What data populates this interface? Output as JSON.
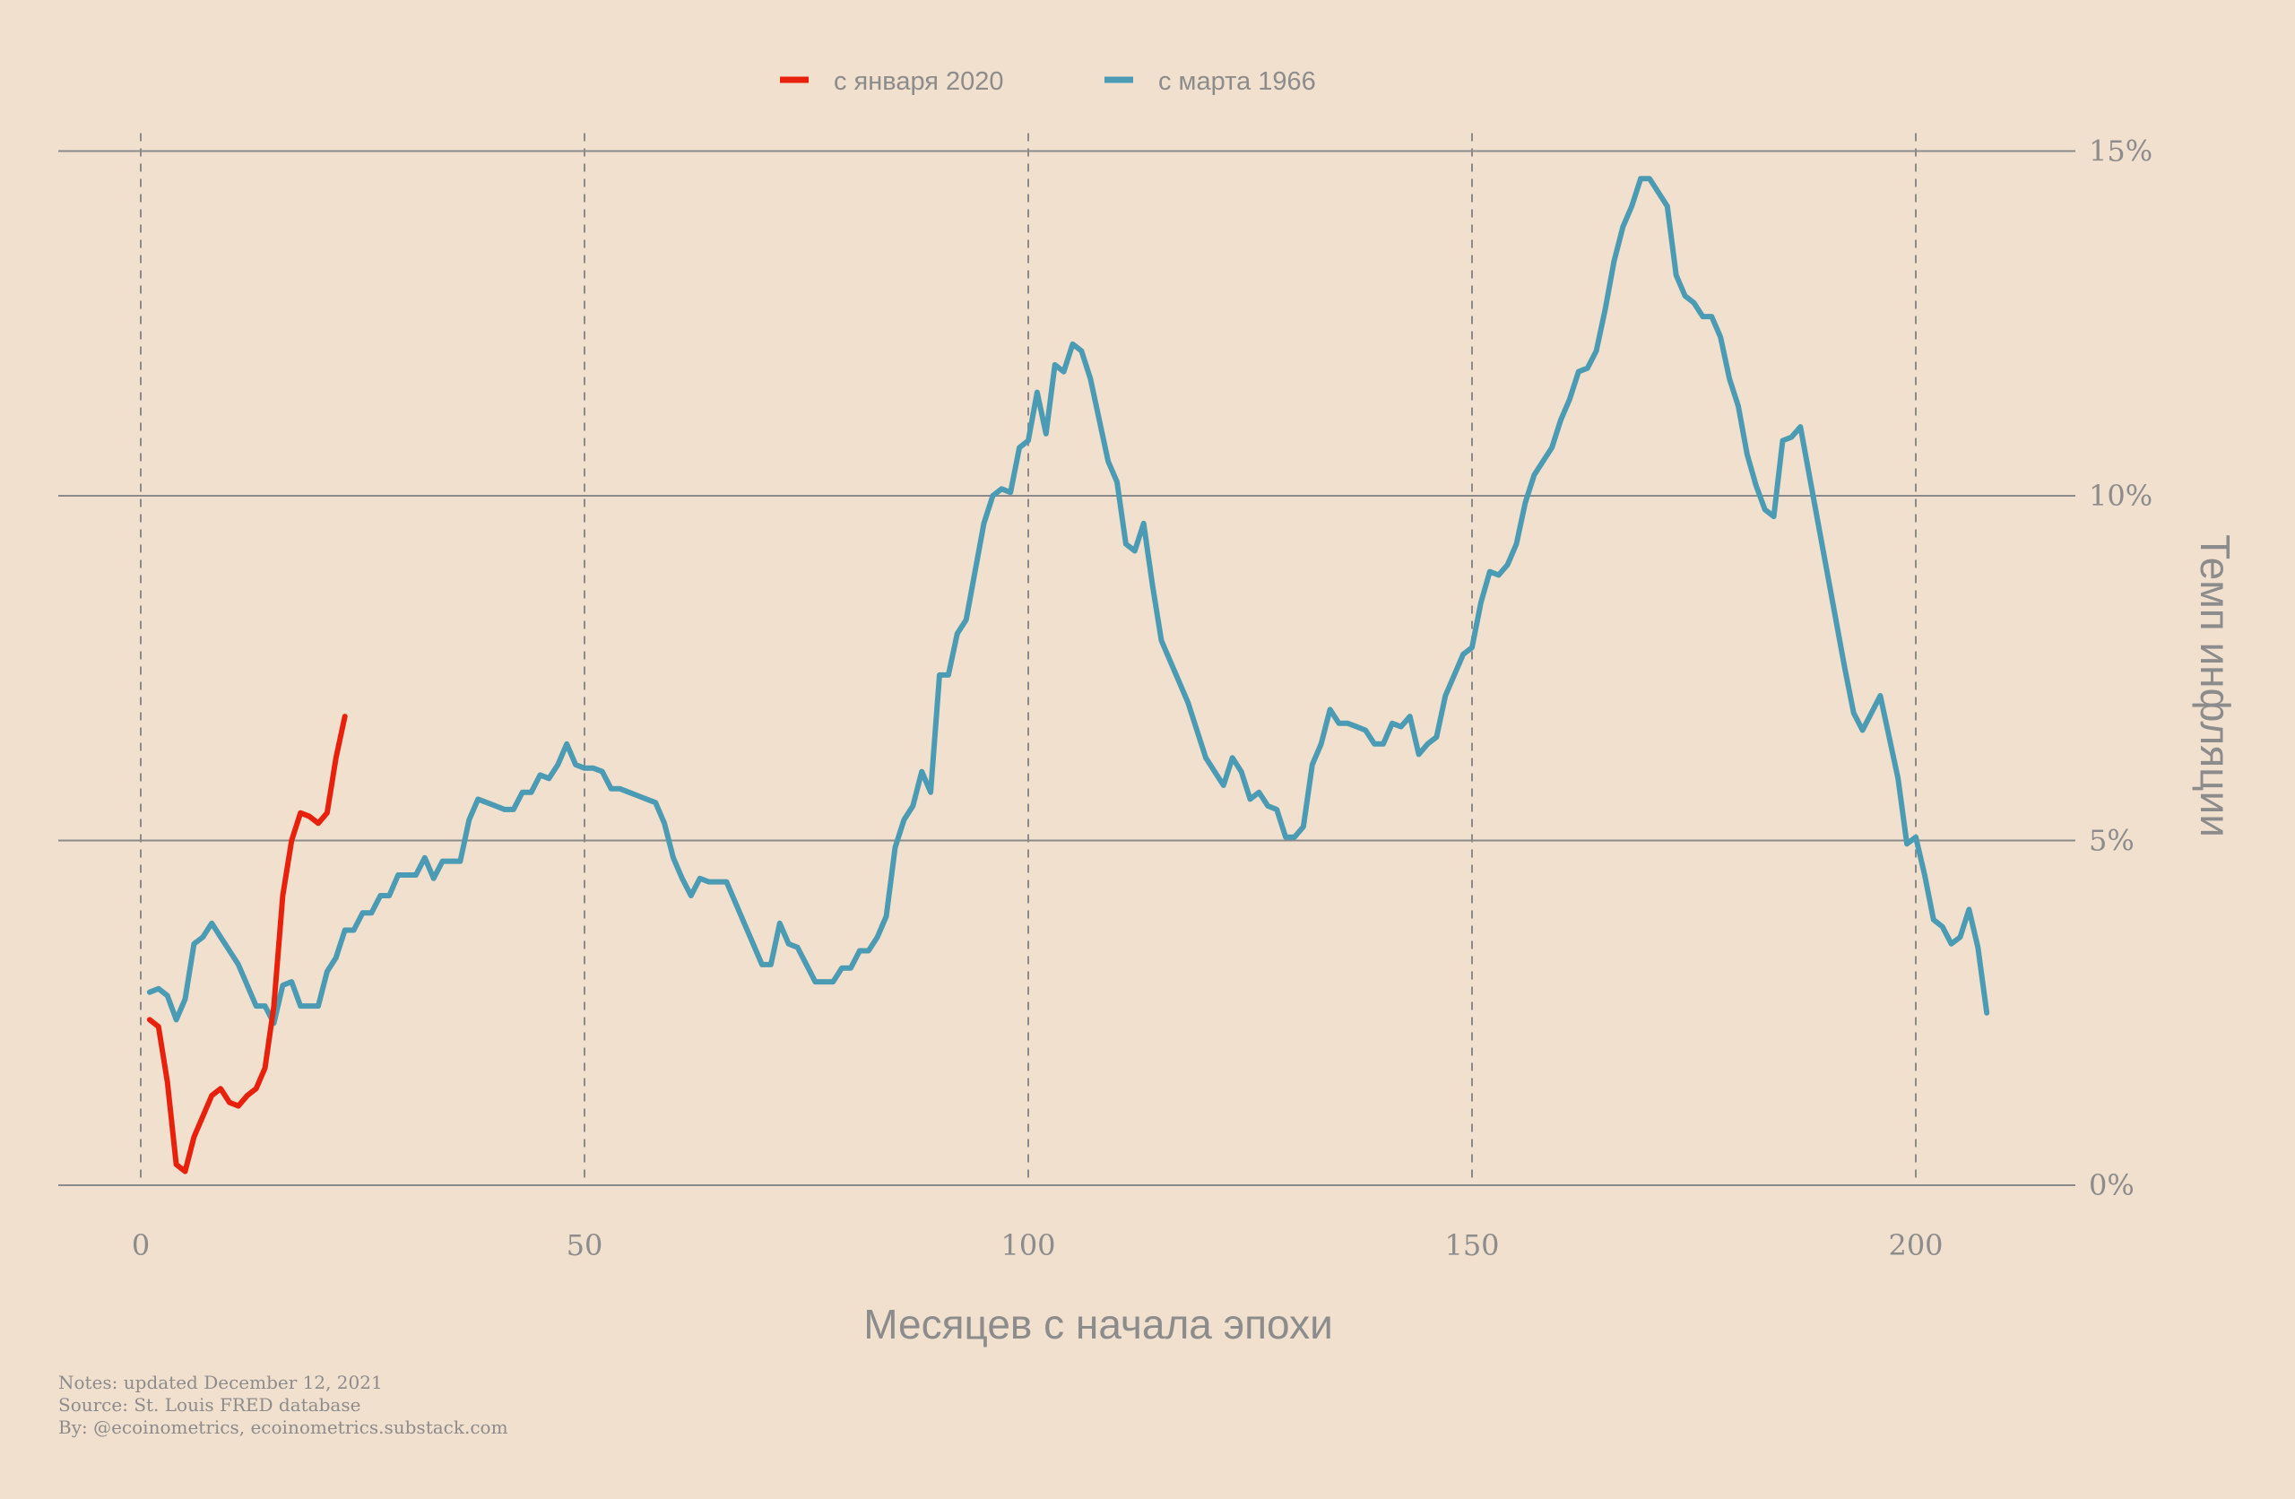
{
  "chart_data": {
    "type": "line",
    "xlabel": "Месяцев с начала эпохи",
    "ylabel": "Темп инфляции",
    "xlim": [
      -9,
      218
    ],
    "ylim": [
      0,
      15
    ],
    "x_ticks": [
      0,
      50,
      100,
      150,
      200
    ],
    "y_ticks": [
      0,
      5,
      10,
      15
    ],
    "x_tick_labels": [
      "0",
      "50",
      "100",
      "150",
      "200"
    ],
    "y_tick_labels": [
      "0%",
      "5%",
      "10%",
      "15%"
    ],
    "grid": {
      "x": "dashed",
      "y": "solid"
    },
    "legend_position": "top-center",
    "series": [
      {
        "name": "с января 2020",
        "color": "#e8210d",
        "points": [
          [
            1,
            2.4
          ],
          [
            2,
            2.3
          ],
          [
            3,
            1.5
          ],
          [
            4,
            0.3
          ],
          [
            5,
            0.2
          ],
          [
            6,
            0.7
          ],
          [
            7,
            1.0
          ],
          [
            8,
            1.3
          ],
          [
            9,
            1.4
          ],
          [
            10,
            1.2
          ],
          [
            11,
            1.15
          ],
          [
            12,
            1.3
          ],
          [
            13,
            1.4
          ],
          [
            14,
            1.7
          ],
          [
            15,
            2.6
          ],
          [
            16,
            4.2
          ],
          [
            17,
            5.0
          ],
          [
            18,
            5.4
          ],
          [
            19,
            5.35
          ],
          [
            20,
            5.25
          ],
          [
            21,
            5.4
          ],
          [
            22,
            6.2
          ],
          [
            23,
            6.8
          ]
        ]
      },
      {
        "name": "с марта 1966",
        "color": "#4a9bb3",
        "points": [
          [
            1,
            2.8
          ],
          [
            2,
            2.85
          ],
          [
            3,
            2.75
          ],
          [
            4,
            2.4
          ],
          [
            5,
            2.7
          ],
          [
            6,
            3.5
          ],
          [
            7,
            3.6
          ],
          [
            8,
            3.8
          ],
          [
            9,
            3.6
          ],
          [
            10,
            3.4
          ],
          [
            11,
            3.2
          ],
          [
            12,
            2.9
          ],
          [
            13,
            2.6
          ],
          [
            14,
            2.6
          ],
          [
            15,
            2.35
          ],
          [
            16,
            2.9
          ],
          [
            17,
            2.95
          ],
          [
            18,
            2.6
          ],
          [
            19,
            2.6
          ],
          [
            20,
            2.6
          ],
          [
            21,
            3.1
          ],
          [
            22,
            3.3
          ],
          [
            23,
            3.7
          ],
          [
            24,
            3.7
          ],
          [
            25,
            3.95
          ],
          [
            26,
            3.95
          ],
          [
            27,
            4.2
          ],
          [
            28,
            4.2
          ],
          [
            29,
            4.5
          ],
          [
            30,
            4.5
          ],
          [
            31,
            4.5
          ],
          [
            32,
            4.75
          ],
          [
            33,
            4.45
          ],
          [
            34,
            4.7
          ],
          [
            35,
            4.7
          ],
          [
            36,
            4.7
          ],
          [
            37,
            5.3
          ],
          [
            38,
            5.6
          ],
          [
            39,
            5.55
          ],
          [
            40,
            5.5
          ],
          [
            41,
            5.45
          ],
          [
            42,
            5.45
          ],
          [
            43,
            5.7
          ],
          [
            44,
            5.7
          ],
          [
            45,
            5.95
          ],
          [
            46,
            5.9
          ],
          [
            47,
            6.1
          ],
          [
            48,
            6.4
          ],
          [
            49,
            6.1
          ],
          [
            50,
            6.05
          ],
          [
            51,
            6.05
          ],
          [
            52,
            6.0
          ],
          [
            53,
            5.75
          ],
          [
            54,
            5.75
          ],
          [
            55,
            5.7
          ],
          [
            56,
            5.65
          ],
          [
            57,
            5.6
          ],
          [
            58,
            5.55
          ],
          [
            59,
            5.25
          ],
          [
            60,
            4.75
          ],
          [
            61,
            4.45
          ],
          [
            62,
            4.2
          ],
          [
            63,
            4.45
          ],
          [
            64,
            4.4
          ],
          [
            65,
            4.4
          ],
          [
            66,
            4.4
          ],
          [
            67,
            4.1
          ],
          [
            68,
            3.8
          ],
          [
            69,
            3.5
          ],
          [
            70,
            3.2
          ],
          [
            71,
            3.2
          ],
          [
            72,
            3.8
          ],
          [
            73,
            3.5
          ],
          [
            74,
            3.45
          ],
          [
            75,
            3.2
          ],
          [
            76,
            2.95
          ],
          [
            77,
            2.95
          ],
          [
            78,
            2.95
          ],
          [
            79,
            3.15
          ],
          [
            80,
            3.15
          ],
          [
            81,
            3.4
          ],
          [
            82,
            3.4
          ],
          [
            83,
            3.6
          ],
          [
            84,
            3.9
          ],
          [
            85,
            4.9
          ],
          [
            86,
            5.3
          ],
          [
            87,
            5.5
          ],
          [
            88,
            6.0
          ],
          [
            89,
            5.7
          ],
          [
            90,
            7.4
          ],
          [
            91,
            7.4
          ],
          [
            92,
            8.0
          ],
          [
            93,
            8.2
          ],
          [
            94,
            8.9
          ],
          [
            95,
            9.6
          ],
          [
            96,
            10.0
          ],
          [
            97,
            10.1
          ],
          [
            98,
            10.05
          ],
          [
            99,
            10.7
          ],
          [
            100,
            10.8
          ],
          [
            101,
            11.5
          ],
          [
            102,
            10.9
          ],
          [
            103,
            11.9
          ],
          [
            104,
            11.8
          ],
          [
            105,
            12.2
          ],
          [
            106,
            12.1
          ],
          [
            107,
            11.7
          ],
          [
            108,
            11.1
          ],
          [
            109,
            10.5
          ],
          [
            110,
            10.2
          ],
          [
            111,
            9.3
          ],
          [
            112,
            9.2
          ],
          [
            113,
            9.6
          ],
          [
            114,
            8.7
          ],
          [
            115,
            7.9
          ],
          [
            116,
            7.6
          ],
          [
            117,
            7.3
          ],
          [
            118,
            7.0
          ],
          [
            119,
            6.6
          ],
          [
            120,
            6.2
          ],
          [
            121,
            6.0
          ],
          [
            122,
            5.8
          ],
          [
            123,
            6.2
          ],
          [
            124,
            6.0
          ],
          [
            125,
            5.6
          ],
          [
            126,
            5.7
          ],
          [
            127,
            5.5
          ],
          [
            128,
            5.45
          ],
          [
            129,
            5.05
          ],
          [
            130,
            5.05
          ],
          [
            131,
            5.2
          ],
          [
            132,
            6.1
          ],
          [
            133,
            6.4
          ],
          [
            134,
            6.9
          ],
          [
            135,
            6.7
          ],
          [
            136,
            6.7
          ],
          [
            137,
            6.65
          ],
          [
            138,
            6.6
          ],
          [
            139,
            6.4
          ],
          [
            140,
            6.4
          ],
          [
            141,
            6.7
          ],
          [
            142,
            6.65
          ],
          [
            143,
            6.8
          ],
          [
            144,
            6.25
          ],
          [
            145,
            6.4
          ],
          [
            146,
            6.5
          ],
          [
            147,
            7.1
          ],
          [
            148,
            7.4
          ],
          [
            149,
            7.7
          ],
          [
            150,
            7.8
          ],
          [
            151,
            8.45
          ],
          [
            152,
            8.9
          ],
          [
            153,
            8.85
          ],
          [
            154,
            9.0
          ],
          [
            155,
            9.3
          ],
          [
            156,
            9.9
          ],
          [
            157,
            10.3
          ],
          [
            158,
            10.5
          ],
          [
            159,
            10.7
          ],
          [
            160,
            11.1
          ],
          [
            161,
            11.4
          ],
          [
            162,
            11.8
          ],
          [
            163,
            11.85
          ],
          [
            164,
            12.1
          ],
          [
            165,
            12.7
          ],
          [
            166,
            13.4
          ],
          [
            167,
            13.9
          ],
          [
            168,
            14.2
          ],
          [
            169,
            14.6
          ],
          [
            170,
            14.6
          ],
          [
            171,
            14.4
          ],
          [
            172,
            14.2
          ],
          [
            173,
            13.2
          ],
          [
            174,
            12.9
          ],
          [
            175,
            12.8
          ],
          [
            176,
            12.6
          ],
          [
            177,
            12.6
          ],
          [
            178,
            12.3
          ],
          [
            179,
            11.7
          ],
          [
            180,
            11.3
          ],
          [
            181,
            10.6
          ],
          [
            182,
            10.15
          ],
          [
            183,
            9.8
          ],
          [
            184,
            9.7
          ],
          [
            185,
            10.8
          ],
          [
            186,
            10.85
          ],
          [
            187,
            11.0
          ],
          [
            188,
            10.3
          ],
          [
            189,
            9.6
          ],
          [
            190,
            8.9
          ],
          [
            191,
            8.2
          ],
          [
            192,
            7.5
          ],
          [
            193,
            6.85
          ],
          [
            194,
            6.6
          ],
          [
            195,
            6.85
          ],
          [
            196,
            7.1
          ],
          [
            197,
            6.5
          ],
          [
            198,
            5.9
          ],
          [
            199,
            4.95
          ],
          [
            200,
            5.05
          ],
          [
            201,
            4.5
          ],
          [
            202,
            3.85
          ],
          [
            203,
            3.75
          ],
          [
            204,
            3.5
          ],
          [
            205,
            3.6
          ],
          [
            206,
            4.0
          ],
          [
            207,
            3.45
          ],
          [
            208,
            2.5
          ]
        ]
      }
    ]
  },
  "notes": {
    "line1": "Notes: updated December 12, 2021",
    "line2": "Source: St. Louis FRED database",
    "line3": "By: @ecoinometrics, ecoinometrics.substack.com"
  }
}
